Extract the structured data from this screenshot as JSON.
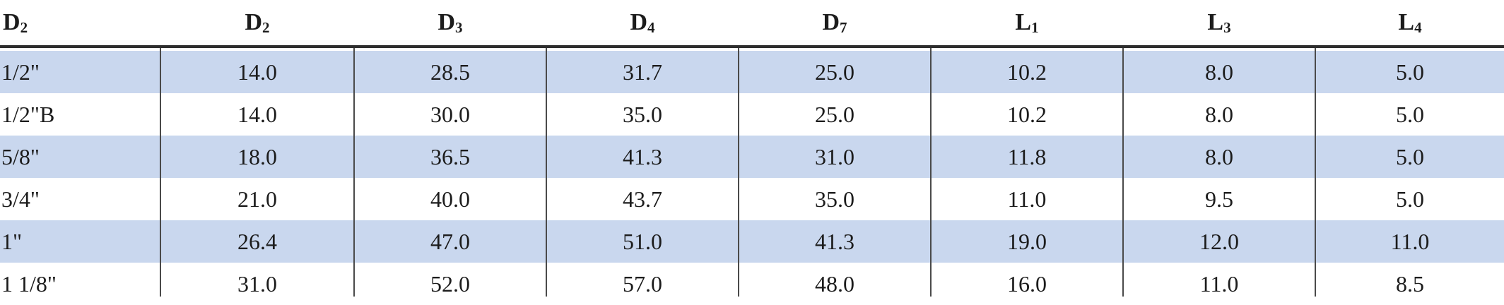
{
  "table": {
    "headers": [
      {
        "base": "D",
        "sub": "2"
      },
      {
        "base": "D",
        "sub": "2"
      },
      {
        "base": "D",
        "sub": "3"
      },
      {
        "base": "D",
        "sub": "4"
      },
      {
        "base": "D",
        "sub": "7"
      },
      {
        "base": "L",
        "sub": "1"
      },
      {
        "base": "L",
        "sub": "3"
      },
      {
        "base": "L",
        "sub": "4"
      }
    ],
    "rows": [
      {
        "shaded": true,
        "cells": [
          "1/2\"",
          "14.0",
          "28.5",
          "31.7",
          "25.0",
          "10.2",
          "8.0",
          "5.0"
        ]
      },
      {
        "shaded": false,
        "cells": [
          "1/2\"B",
          "14.0",
          "30.0",
          "35.0",
          "25.0",
          "10.2",
          "8.0",
          "5.0"
        ]
      },
      {
        "shaded": true,
        "cells": [
          "5/8\"",
          "18.0",
          "36.5",
          "41.3",
          "31.0",
          "11.8",
          "8.0",
          "5.0"
        ]
      },
      {
        "shaded": false,
        "cells": [
          "3/4\"",
          "21.0",
          "40.0",
          "43.7",
          "35.0",
          "11.0",
          "9.5",
          "5.0"
        ]
      },
      {
        "shaded": true,
        "cells": [
          "1\"",
          "26.4",
          "47.0",
          "51.0",
          "41.3",
          "19.0",
          "12.0",
          "11.0"
        ]
      },
      {
        "shaded": false,
        "cells": [
          "1 1/8\"",
          "31.0",
          "52.0",
          "57.0",
          "48.0",
          "16.0",
          "11.0",
          "8.5"
        ]
      }
    ],
    "colors": {
      "row_shade": "#c9d7ee",
      "rule": "#2e2e2e",
      "divider": "#4a4a4a"
    }
  }
}
